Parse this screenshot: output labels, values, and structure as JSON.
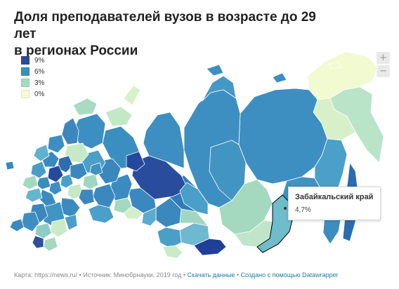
{
  "header": {
    "title_line1": "Доля преподавателей вузов в возрасте до 29 лет",
    "title_line2": "в регионах России"
  },
  "legend": {
    "items": [
      {
        "label": "9%",
        "color": "#2b4a9b"
      },
      {
        "label": "6%",
        "color": "#3a8fc0"
      },
      {
        "label": "3%",
        "color": "#a4d9c0"
      },
      {
        "label": "0%",
        "color": "#f5fbd6"
      }
    ]
  },
  "zoom": {
    "in_label": "+",
    "out_label": "−"
  },
  "tooltip": {
    "region": "Забайкальский край",
    "value": "4,7%"
  },
  "footer": {
    "source": "Карта: https://news.ru/ • Источник: Минобрнауки, 2019 год • ",
    "download": "Скачать данные",
    "separator": " • ",
    "created": "Создано с помощью Datawrapper"
  }
}
